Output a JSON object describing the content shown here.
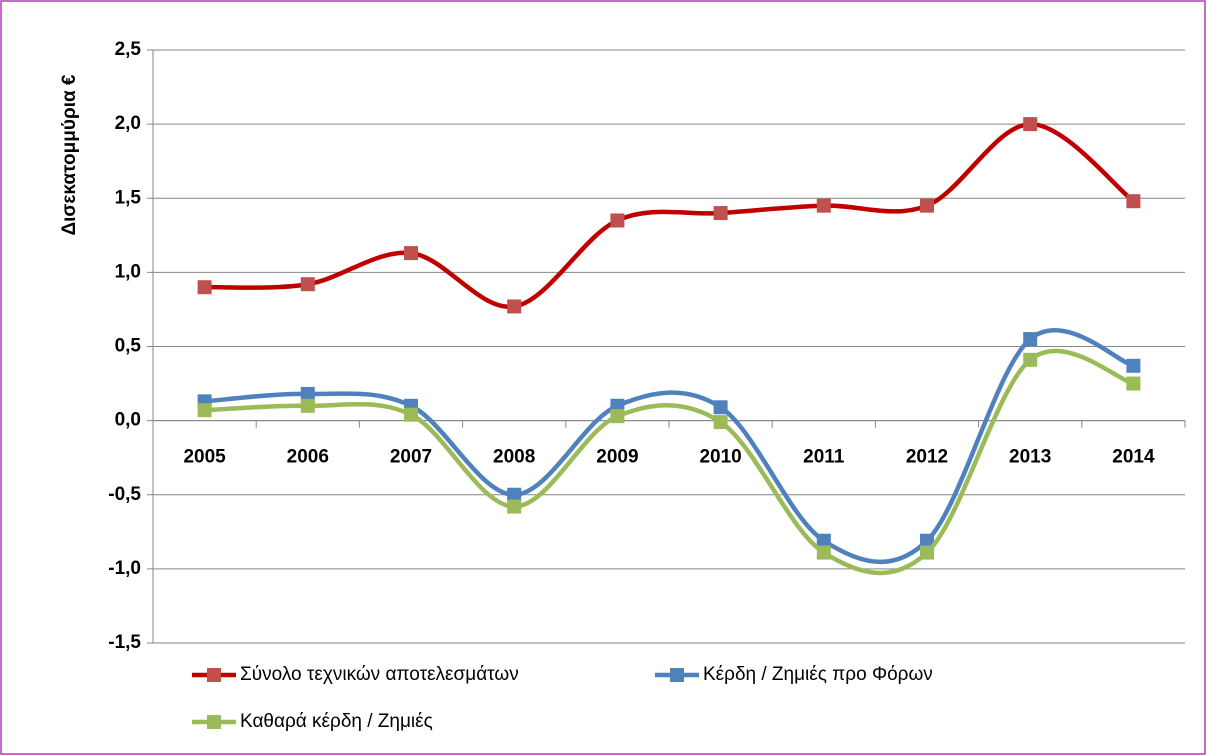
{
  "chart_data": {
    "type": "line",
    "y_label": "Δισεκατομμύρια €",
    "categories": [
      "2005",
      "2006",
      "2007",
      "2008",
      "2009",
      "2010",
      "2011",
      "2012",
      "2013",
      "2014"
    ],
    "series": [
      {
        "name": "Σύνολο τεχνικών αποτελεσμάτων",
        "color": "#c00000",
        "marker_color": "#c0504d",
        "values": [
          0.9,
          0.92,
          1.13,
          0.77,
          1.35,
          1.4,
          1.45,
          1.45,
          2.0,
          1.48
        ]
      },
      {
        "name": "Κέρδη / Ζημιές προ Φόρων",
        "color": "#4f81bd",
        "marker_color": "#4f81bd",
        "values": [
          0.13,
          0.18,
          0.1,
          -0.5,
          0.1,
          0.09,
          -0.81,
          -0.81,
          0.55,
          0.37
        ]
      },
      {
        "name": "Καθαρά κέρδη / Ζημιές",
        "color": "#9bbb59",
        "marker_color": "#9bbb59",
        "values": [
          0.07,
          0.1,
          0.04,
          -0.58,
          0.03,
          -0.01,
          -0.89,
          -0.89,
          0.41,
          0.25
        ]
      }
    ],
    "ylim": [
      -1.5,
      2.5
    ],
    "yticks": [
      {
        "value": -1.5,
        "label": "-1,5"
      },
      {
        "value": -1,
        "label": "-1,0"
      },
      {
        "value": -0.5,
        "label": "-0,5"
      },
      {
        "value": 0,
        "label": "0,0"
      },
      {
        "value": 0.5,
        "label": "0,5"
      },
      {
        "value": 1,
        "label": "1,0"
      },
      {
        "value": 1.5,
        "label": "1,5"
      },
      {
        "value": 2,
        "label": "2,0"
      },
      {
        "value": 2.5,
        "label": "2,5"
      }
    ],
    "grid": true,
    "smooth": true,
    "legend": "bottom"
  }
}
